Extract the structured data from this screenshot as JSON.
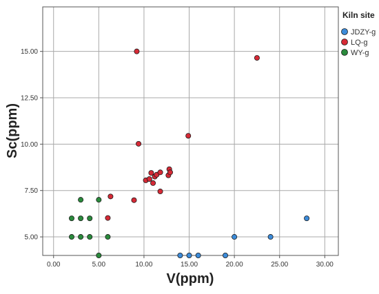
{
  "chart_data": {
    "type": "scatter",
    "xlabel": "V(ppm)",
    "ylabel": "Sc(ppm)",
    "xlim": [
      -1.2,
      31.5
    ],
    "ylim": [
      4.0,
      17.4
    ],
    "x_ticks": [
      "0.00",
      "5.00",
      "10.00",
      "15.00",
      "20.00",
      "25.00",
      "30.00"
    ],
    "x_tick_values": [
      0,
      5,
      10,
      15,
      20,
      25,
      30
    ],
    "y_ticks": [
      "5.00",
      "7.50",
      "10.00",
      "12.50",
      "15.00"
    ],
    "y_tick_values": [
      5,
      7.5,
      10,
      12.5,
      15
    ],
    "grid": true,
    "legend": {
      "title": "Kiln site",
      "position": "top-right"
    },
    "series": [
      {
        "name": "JDZY-g",
        "color": "#3c8bd9",
        "points": [
          [
            14,
            4
          ],
          [
            15,
            4
          ],
          [
            16,
            4
          ],
          [
            19,
            4
          ],
          [
            20,
            5
          ],
          [
            24,
            5
          ],
          [
            28,
            6
          ]
        ]
      },
      {
        "name": "LQ-g",
        "color": "#d62a36",
        "points": [
          [
            9.2,
            15
          ],
          [
            22.5,
            14.65
          ],
          [
            9.4,
            10.02
          ],
          [
            14.9,
            10.45
          ],
          [
            10.2,
            8.05
          ],
          [
            10.6,
            8.12
          ],
          [
            10.8,
            8.45
          ],
          [
            11.0,
            7.9
          ],
          [
            11.2,
            8.25
          ],
          [
            11.4,
            8.35
          ],
          [
            11.8,
            8.48
          ],
          [
            11.8,
            7.45
          ],
          [
            12.7,
            8.32
          ],
          [
            12.8,
            8.65
          ],
          [
            12.9,
            8.48
          ],
          [
            6.3,
            7.18
          ],
          [
            8.9,
            6.98
          ],
          [
            6.0,
            6.02
          ]
        ]
      },
      {
        "name": "WY-g",
        "color": "#2a8a3c",
        "points": [
          [
            2,
            6
          ],
          [
            2,
            5
          ],
          [
            3,
            7
          ],
          [
            3,
            6
          ],
          [
            3,
            5
          ],
          [
            4,
            6
          ],
          [
            4,
            5
          ],
          [
            5,
            7
          ],
          [
            5,
            4
          ],
          [
            6,
            5
          ]
        ]
      }
    ]
  }
}
